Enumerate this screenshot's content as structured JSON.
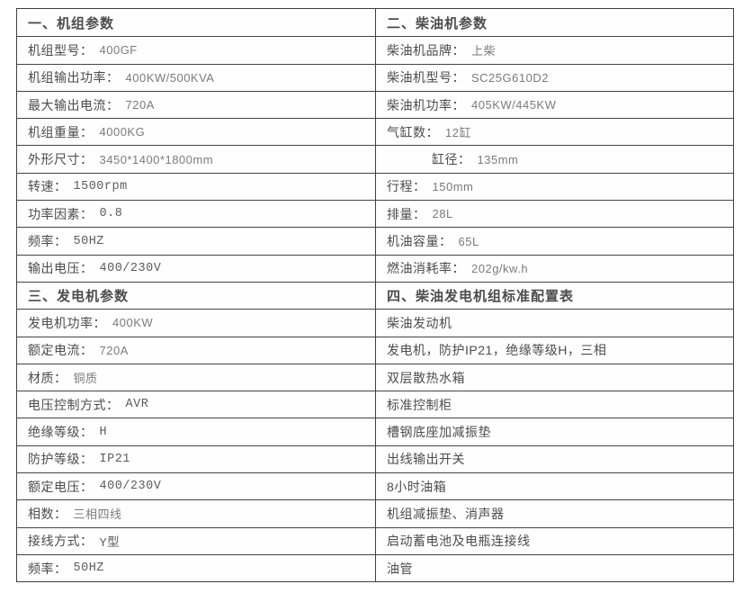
{
  "columns": [
    {
      "blocks": [
        {
          "header": "一、机组参数",
          "rows": [
            {
              "label": "机组型号：",
              "value": "400GF"
            },
            {
              "label": "机组输出功率：",
              "value": "400KW/500KVA"
            },
            {
              "label": "最大输出电流：",
              "value": "720A"
            },
            {
              "label": "机组重量：",
              "value": "4000KG"
            },
            {
              "label": "外形尺寸：",
              "value": "3450*1400*1800mm"
            },
            {
              "label": "转速：",
              "value": "1500rpm"
            },
            {
              "label": "功率因素：",
              "value": "0.8"
            },
            {
              "label": "频率：",
              "value": "50HZ"
            },
            {
              "label": "输出电压：",
              "value": "400/230V"
            }
          ]
        },
        {
          "header": "三、发电机参数",
          "rows": [
            {
              "label": "发电机功率：",
              "value": "400KW"
            },
            {
              "label": "额定电流：",
              "value": "720A"
            },
            {
              "label": "材质：",
              "value": "铜质"
            },
            {
              "label": "电压控制方式：",
              "value": "AVR"
            },
            {
              "label": "绝缘等级：",
              "value": "H"
            },
            {
              "label": "防护等级：",
              "value": "IP21"
            },
            {
              "label": "额定电压：",
              "value": "400/230V"
            },
            {
              "label": "相数：",
              "value": "三相四线"
            },
            {
              "label": "接线方式：",
              "value": "Y型"
            },
            {
              "label": "频率：",
              "value": "50HZ"
            }
          ]
        }
      ]
    },
    {
      "blocks": [
        {
          "header": "二、柴油机参数",
          "rows": [
            {
              "label": "柴油机品牌：",
              "value": "上柴"
            },
            {
              "label": "柴油机型号：",
              "value": "SC25G610D2"
            },
            {
              "label": "柴油机功率：",
              "value": "405KW/445KW"
            },
            {
              "label": "气缸数：",
              "value": "12缸"
            },
            {
              "label": "缸径：",
              "value": "135mm"
            },
            {
              "label": "行程：",
              "value": "150mm"
            },
            {
              "label": "排量：",
              "value": "28L"
            },
            {
              "label": "机油容量：",
              "value": "65L"
            },
            {
              "label": "燃油消耗率：",
              "value": "202g/kw.h"
            }
          ]
        },
        {
          "header": "四、柴油发电机组标准配置表",
          "rows": [
            {
              "label": "柴油发动机",
              "value": ""
            },
            {
              "label": "发电机，防护IP21，绝缘等级H，三相",
              "value": ""
            },
            {
              "label": "双层散热水箱",
              "value": ""
            },
            {
              "label": "标准控制柜",
              "value": ""
            },
            {
              "label": "槽钢底座加减振垫",
              "value": ""
            },
            {
              "label": "出线输出开关",
              "value": ""
            },
            {
              "label": "8小时油箱",
              "value": ""
            },
            {
              "label": "机组减振垫、消声器",
              "value": ""
            },
            {
              "label": "启动蓄电池及电瓶连接线",
              "value": ""
            },
            {
              "label": "油管",
              "value": ""
            }
          ]
        }
      ]
    }
  ]
}
